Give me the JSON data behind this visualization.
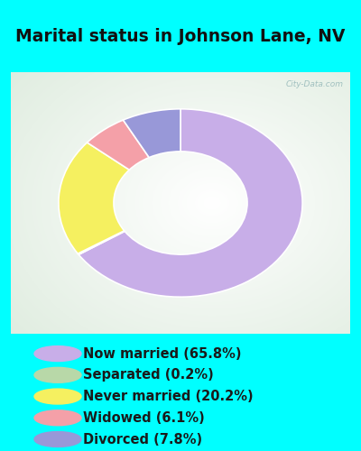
{
  "title": "Marital status in Johnson Lane, NV",
  "title_color": "#111111",
  "title_fontsize": 13.5,
  "bg_color": "#00FFFF",
  "slices": [
    {
      "label": "Now married (65.8%)",
      "value": 65.8,
      "color": "#c8aee8"
    },
    {
      "label": "Separated (0.2%)",
      "value": 0.2,
      "color": "#b8d8a8"
    },
    {
      "label": "Never married (20.2%)",
      "value": 20.2,
      "color": "#f5f060"
    },
    {
      "label": "Widowed (6.1%)",
      "value": 6.1,
      "color": "#f4a0a8"
    },
    {
      "label": "Divorced (7.8%)",
      "value": 7.8,
      "color": "#9898d8"
    }
  ],
  "legend_fontsize": 10.5,
  "donut_outer": 1.15,
  "donut_width": 0.52,
  "start_angle": 90,
  "watermark": "City-Data.com",
  "chart_panel_color": "#d0e8d8",
  "chart_panel_border": "#b0c8b8"
}
